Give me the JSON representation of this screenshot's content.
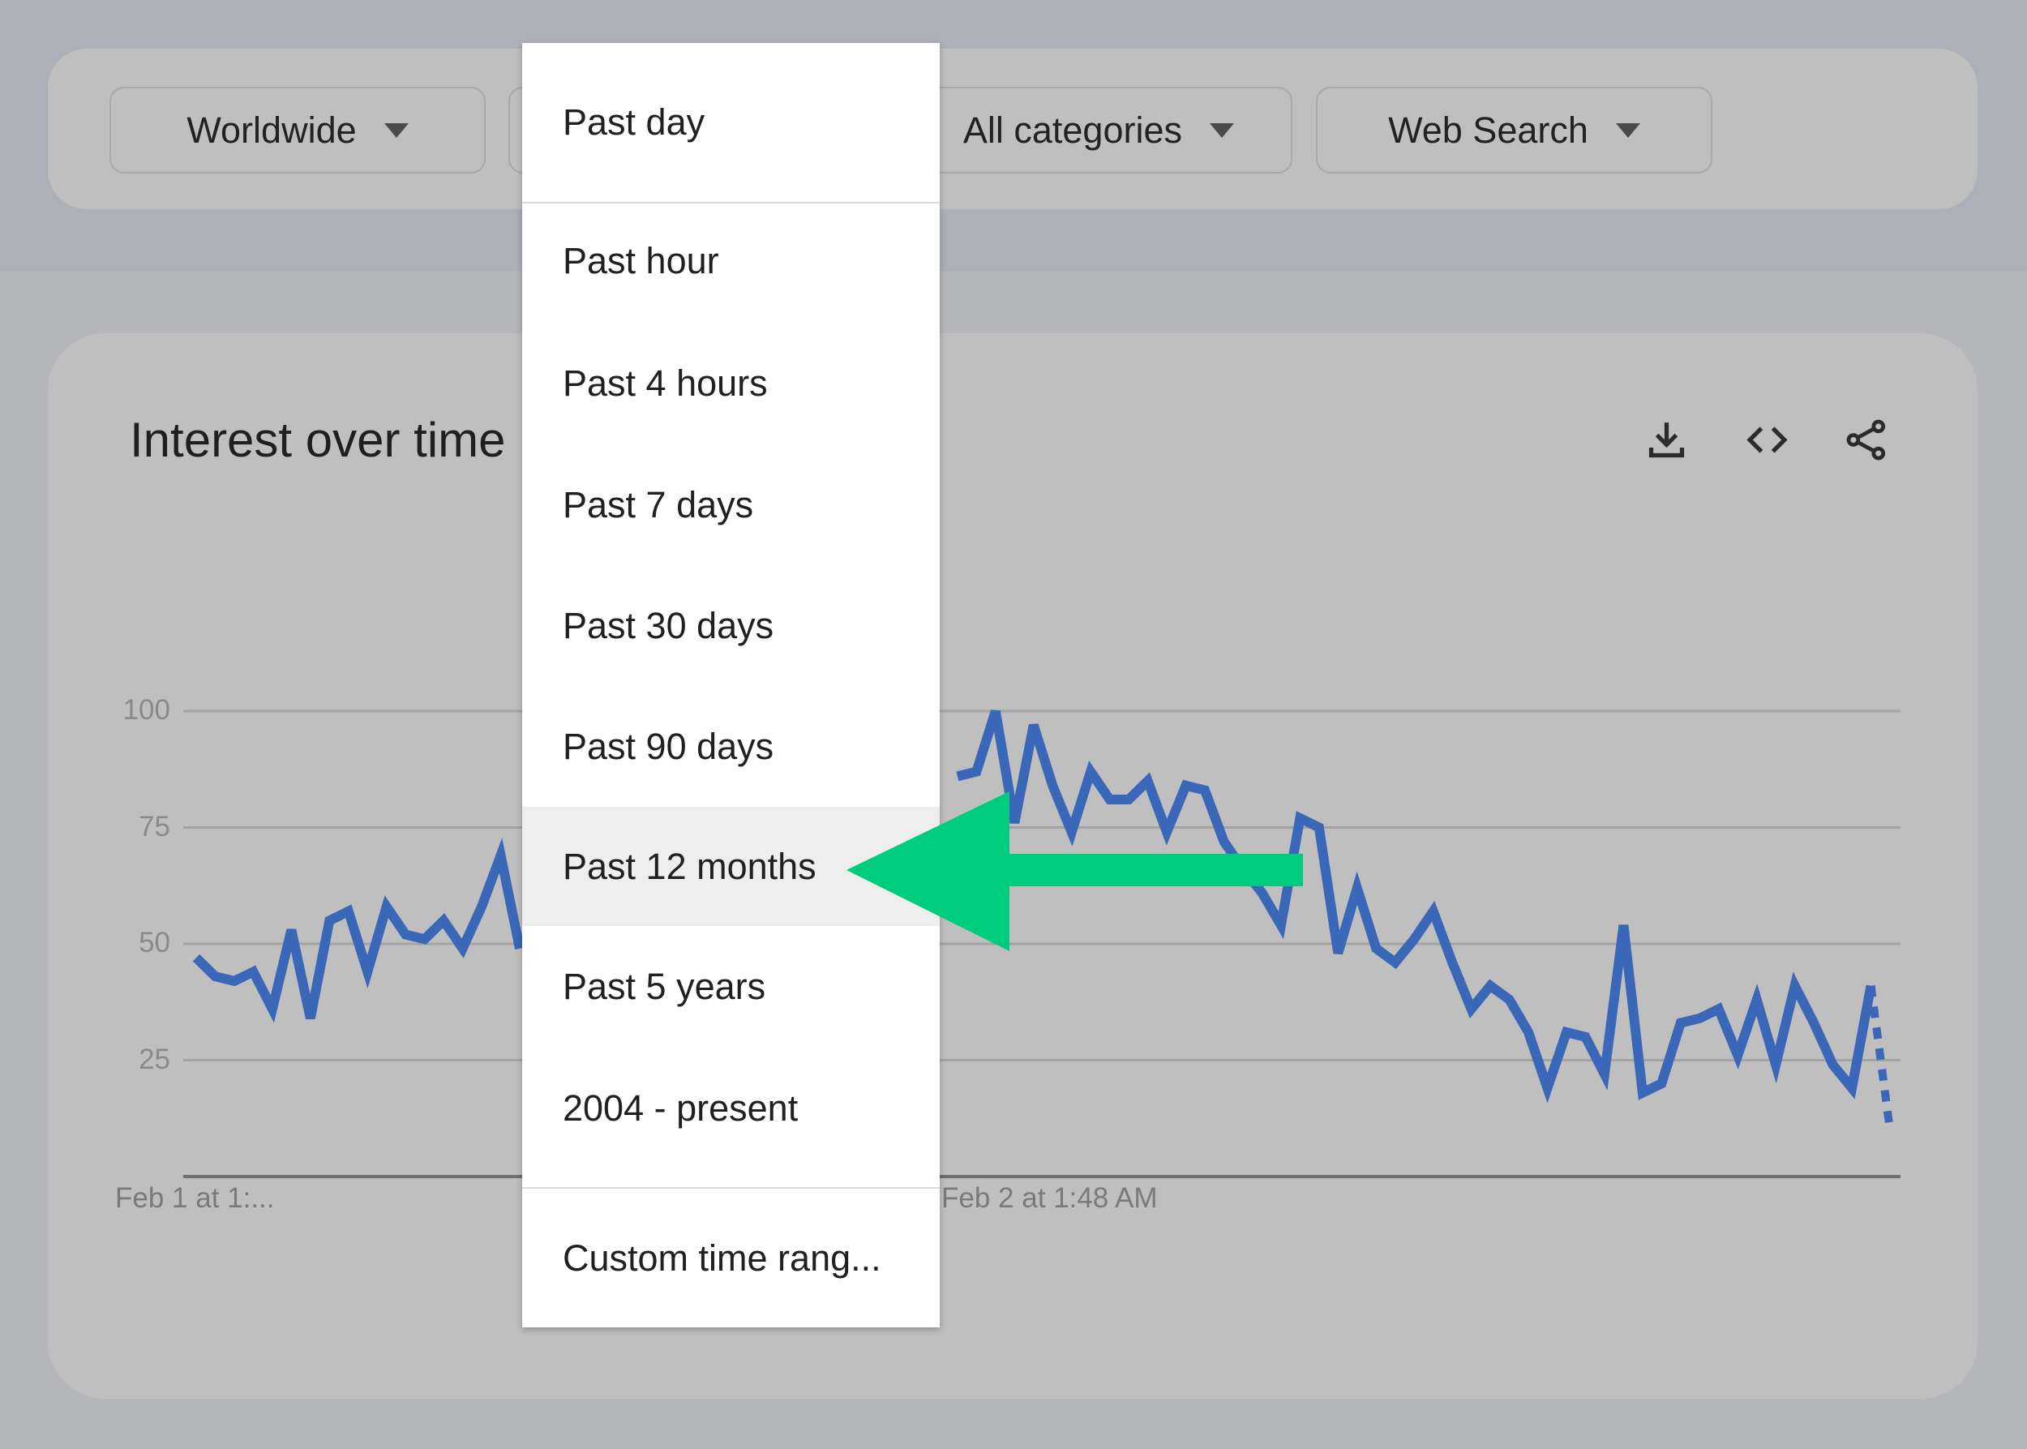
{
  "filters": {
    "location": "Worldwide",
    "category": "All categories",
    "search_type": "Web Search"
  },
  "card": {
    "title": "Interest over time",
    "icons": [
      "download-icon",
      "embed-code-icon",
      "share-icon"
    ]
  },
  "time_menu": {
    "items": [
      "Past day",
      "Past hour",
      "Past 4 hours",
      "Past 7 days",
      "Past 30 days",
      "Past 90 days",
      "Past 12 months",
      "Past 5 years",
      "2004 - present",
      "Custom time rang..."
    ],
    "highlighted": "Past 12 months"
  },
  "annotation": {
    "arrow_color": "#00cc7e",
    "points_to": "Past 12 months"
  },
  "chart_data": {
    "type": "line",
    "ylim": [
      0,
      100
    ],
    "yticks": [
      "25",
      "50",
      "75",
      "100"
    ],
    "xtick_labels": [
      "Feb 1 at 1:...",
      "Feb 2 at 1:48 AM"
    ],
    "grid": true,
    "line_color": "#3a67b8",
    "last_segment_partial": true,
    "values": [
      47,
      43,
      42,
      44,
      36,
      53,
      34,
      55,
      57,
      44,
      58,
      52,
      51,
      55,
      49,
      58,
      69,
      49,
      null,
      null,
      null,
      null,
      null,
      null,
      null,
      null,
      null,
      null,
      null,
      null,
      null,
      null,
      null,
      null,
      null,
      null,
      null,
      null,
      null,
      null,
      86,
      87,
      100,
      76,
      97,
      84,
      74,
      87,
      81,
      81,
      85,
      74,
      84,
      83,
      72,
      66,
      61,
      54,
      77,
      75,
      48,
      62,
      49,
      46,
      51,
      57,
      46,
      36,
      41,
      38,
      31,
      19,
      31,
      30,
      22,
      54,
      18,
      20,
      33,
      34,
      36,
      26,
      38,
      24,
      41,
      33,
      24,
      19,
      41,
      10
    ]
  }
}
